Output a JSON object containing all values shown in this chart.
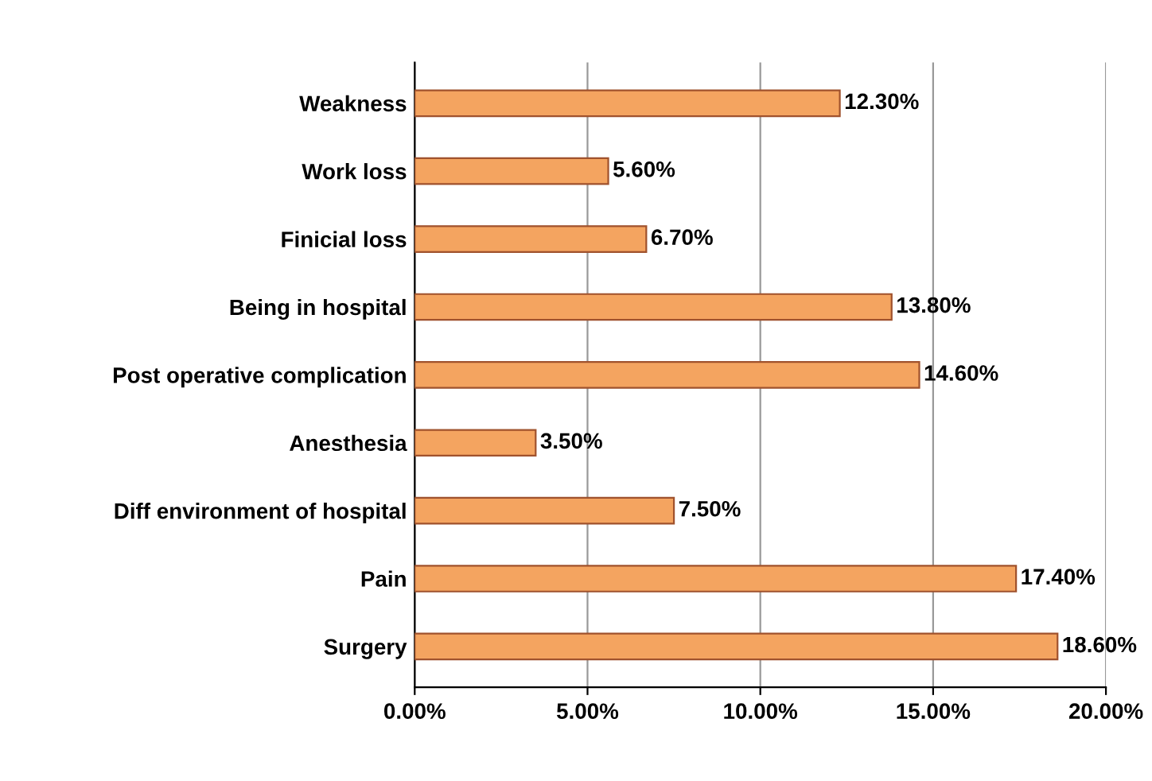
{
  "chart_data": {
    "type": "bar",
    "orientation": "horizontal",
    "categories": [
      "Weakness",
      "Work loss",
      "Finicial loss",
      "Being in hospital",
      "Post operative complication",
      "Anesthesia",
      "Diff environment of hospital",
      "Pain",
      "Surgery"
    ],
    "values": [
      12.3,
      5.6,
      6.7,
      13.8,
      14.6,
      3.5,
      7.5,
      17.4,
      18.6
    ],
    "value_labels": [
      "12.30%",
      "5.60%",
      "6.70%",
      "13.80%",
      "14.60%",
      "3.50%",
      "7.50%",
      "17.40%",
      "18.60%"
    ],
    "color": "#f4a460",
    "xlim": [
      0,
      20
    ],
    "xticks": [
      {
        "value": 0,
        "label": "0.00%"
      },
      {
        "value": 5,
        "label": "5.00%"
      },
      {
        "value": 10,
        "label": "10.00%"
      },
      {
        "value": 15,
        "label": "15.00%"
      },
      {
        "value": 20,
        "label": "20.00%"
      }
    ],
    "grid": "x"
  }
}
